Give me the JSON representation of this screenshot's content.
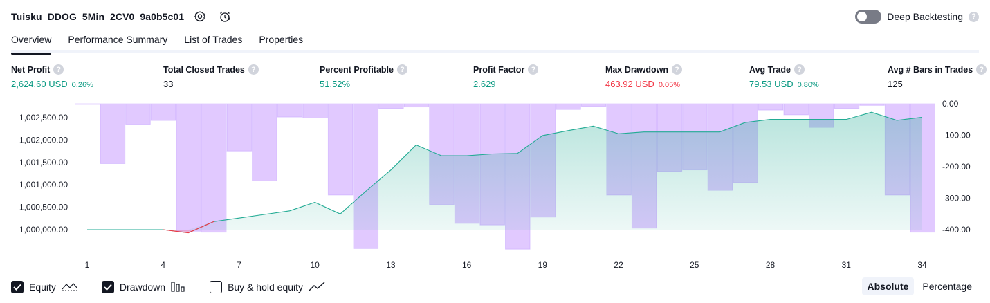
{
  "header": {
    "strategy_name": "Tuisku_DDOG_5Min_2CV0_9a0b5c01",
    "settings_icon": "gear-icon",
    "alert_icon": "alarm-clock-icon",
    "deep_backtesting_label": "Deep Backtesting",
    "deep_backtesting_enabled": false,
    "help_glyph": "?"
  },
  "tabs": [
    {
      "label": "Overview",
      "active": true
    },
    {
      "label": "Performance Summary",
      "active": false
    },
    {
      "label": "List of Trades",
      "active": false
    },
    {
      "label": "Properties",
      "active": false
    }
  ],
  "metrics": {
    "net_profit": {
      "label": "Net Profit",
      "value": "2,624.60 USD",
      "sub": "0.26%"
    },
    "total_closed_trades": {
      "label": "Total Closed Trades",
      "value": "33"
    },
    "percent_profitable": {
      "label": "Percent Profitable",
      "value": "51.52%"
    },
    "profit_factor": {
      "label": "Profit Factor",
      "value": "2.629"
    },
    "max_drawdown": {
      "label": "Max Drawdown",
      "value": "463.92 USD",
      "sub": "0.05%"
    },
    "avg_trade": {
      "label": "Avg Trade",
      "value": "79.53 USD",
      "sub": "0.80%"
    },
    "avg_bars": {
      "label": "Avg # Bars in Trades",
      "value": "125"
    }
  },
  "colors": {
    "profit": "#089981",
    "loss": "#f23645",
    "equity_line": "#22ab94",
    "drawdown_bar": "#b388ff",
    "drawdown_fill": "#e1c9ff"
  },
  "chart_data": {
    "type": "line",
    "x": [
      1,
      2,
      3,
      4,
      5,
      6,
      7,
      8,
      9,
      10,
      11,
      12,
      13,
      14,
      15,
      16,
      17,
      18,
      19,
      20,
      21,
      22,
      23,
      24,
      25,
      26,
      27,
      28,
      29,
      30,
      31,
      32,
      33,
      34
    ],
    "x_ticks": [
      "1",
      "4",
      "7",
      "10",
      "13",
      "16",
      "19",
      "22",
      "25",
      "28",
      "31",
      "34"
    ],
    "left_axis": {
      "label": "",
      "ticks": [
        "1,002,500.00",
        "1,002,000.00",
        "1,001,500.00",
        "1,001,000.00",
        "1,000,500.00",
        "1,000,000.00"
      ],
      "range": [
        999900,
        1002800
      ]
    },
    "right_axis": {
      "label": "",
      "ticks": [
        "0.00",
        "-100.00",
        "-200.00",
        "-300.00",
        "-400.00"
      ],
      "range": [
        -460,
        5
      ]
    },
    "series": [
      {
        "name": "Equity",
        "values": [
          1000000,
          1000000,
          1000000,
          1000000,
          999930,
          1000180,
          1000260,
          1000340,
          1000420,
          1000610,
          1000350,
          1000850,
          1001330,
          1001890,
          1001650,
          1001650,
          1001690,
          1001700,
          1002100,
          1002210,
          1002310,
          1002140,
          1002180,
          1002180,
          1002180,
          1002180,
          1002390,
          1002460,
          1002460,
          1002460,
          1002460,
          1002620,
          1002440,
          1002510
        ]
      },
      {
        "name": "Drawdown",
        "values": [
          -2,
          -190,
          -65,
          -53,
          -405,
          -408,
          -150,
          -245,
          -42,
          -45,
          -290,
          -460,
          -15,
          -10,
          -320,
          -380,
          -385,
          -462,
          -360,
          -18,
          -8,
          -290,
          -395,
          -215,
          -210,
          -275,
          -250,
          -20,
          -35,
          -75,
          -15,
          -5,
          -290,
          -408
        ]
      }
    ],
    "legend": [
      {
        "label": "Equity",
        "checked": true,
        "icon": "equity-line-icon"
      },
      {
        "label": "Drawdown",
        "checked": true,
        "icon": "drawdown-bars-icon"
      },
      {
        "label": "Buy & hold equity",
        "checked": false,
        "icon": "buy-hold-line-icon"
      }
    ],
    "grid": false
  },
  "view_modes": [
    {
      "label": "Absolute",
      "active": true
    },
    {
      "label": "Percentage",
      "active": false
    }
  ]
}
